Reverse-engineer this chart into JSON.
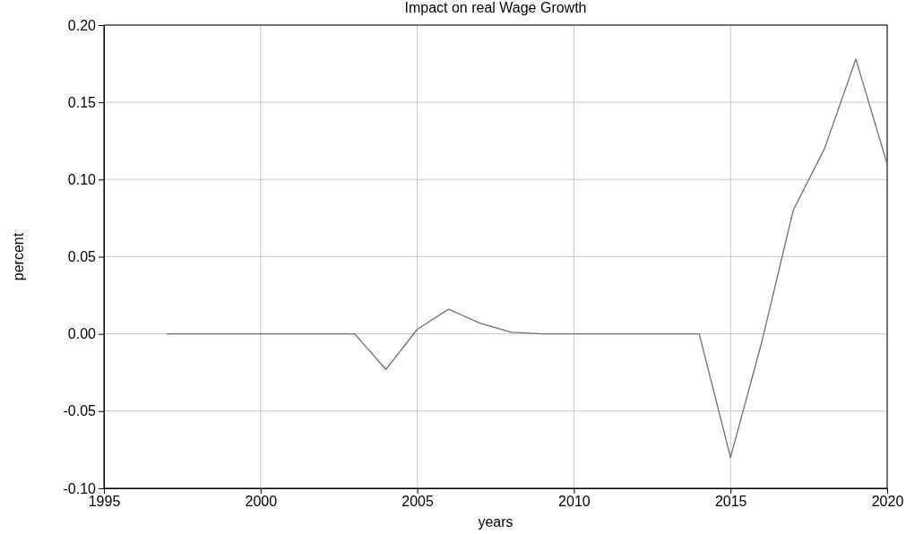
{
  "chart_data": {
    "type": "line",
    "title": "Impact on real Wage Growth",
    "xlabel": "years",
    "ylabel": "percent",
    "x": [
      1997,
      1998,
      1999,
      2000,
      2001,
      2002,
      2003,
      2004,
      2005,
      2006,
      2007,
      2008,
      2009,
      2010,
      2011,
      2012,
      2013,
      2014,
      2015,
      2016,
      2017,
      2018,
      2019,
      2020
    ],
    "series": [
      {
        "color": "#707070",
        "values": [
          0,
          0,
          0,
          0,
          0,
          0,
          0,
          -0.023,
          0.003,
          0.016,
          0.007,
          0.001,
          0,
          0,
          0,
          0,
          0,
          0,
          -0.08,
          -0.005,
          0.08,
          0.12,
          0.178,
          0.11
        ]
      }
    ],
    "xlim": [
      1995,
      2020
    ],
    "xticks": [
      1995,
      2000,
      2005,
      2010,
      2015,
      2020
    ],
    "ylim": [
      -0.1,
      0.2
    ],
    "yticks": [
      {
        "value": -0.1,
        "label": "-0.10"
      },
      {
        "value": -0.05,
        "label": "-0.05"
      },
      {
        "value": 0,
        "label": "0.00"
      },
      {
        "value": 0.05,
        "label": "0.05"
      },
      {
        "value": 0.1,
        "label": "0.10"
      },
      {
        "value": 0.15,
        "label": "0.15"
      },
      {
        "value": 0.2,
        "label": "0.20"
      }
    ],
    "grid": true,
    "line_style": "solid",
    "marker": "none"
  }
}
